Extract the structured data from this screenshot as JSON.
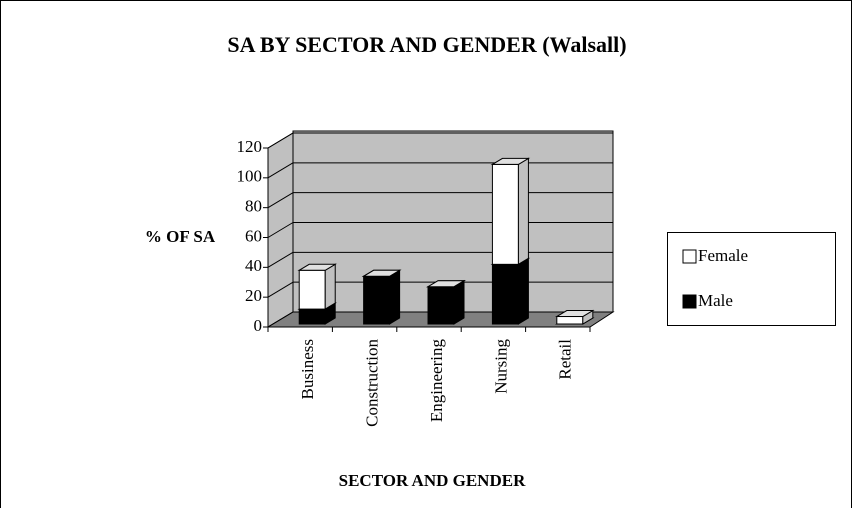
{
  "chart_data": {
    "type": "bar3d_stacked",
    "title": "SA BY SECTOR AND GENDER (Walsall)",
    "y_label": "% OF SA",
    "x_label": "SECTOR AND GENDER",
    "categories": [
      "Business",
      "Construction",
      "Engineering",
      "Nursing",
      "Retail"
    ],
    "series": [
      {
        "name": "Male",
        "color": "#000000",
        "values": [
          10,
          32,
          25,
          40,
          0
        ]
      },
      {
        "name": "Female",
        "color": "#ffffff",
        "values": [
          26,
          0,
          0,
          67,
          5
        ]
      }
    ],
    "legend_order": [
      1,
      0
    ],
    "ylim": [
      0,
      120
    ],
    "yticks": [
      0,
      20,
      40,
      60,
      80,
      100,
      120
    ],
    "grid": true
  }
}
